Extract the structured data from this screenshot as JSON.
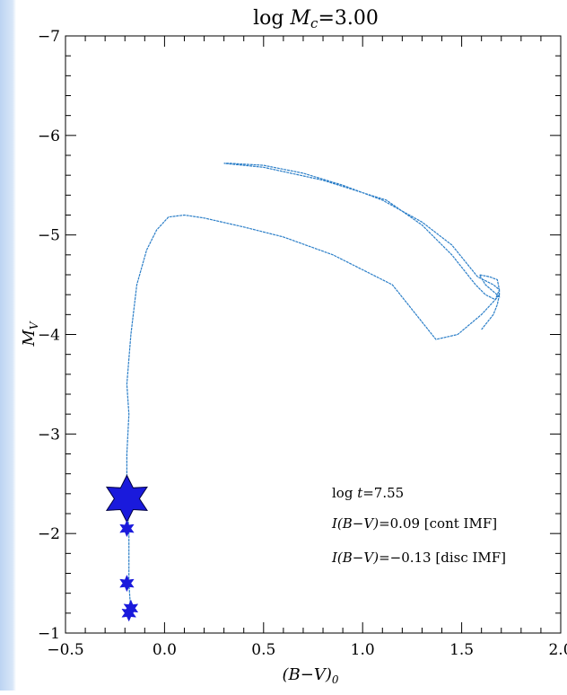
{
  "chart_data": {
    "type": "line",
    "title": "log M_c=3.00",
    "title_prefix": "log ",
    "title_var": "M",
    "title_sub": "c",
    "title_suffix": "=3.00",
    "xlabel": "(B−V)_0",
    "xlabel_main": "(B−V)",
    "xlabel_sub": "0",
    "ylabel": "M_V",
    "ylabel_main": "M",
    "ylabel_sub": "V",
    "xlim": [
      -0.5,
      2.0
    ],
    "ylim": [
      -1,
      -7
    ],
    "y_inverted": true,
    "x_ticks": [
      -0.5,
      0.0,
      0.5,
      1.0,
      1.5,
      2.0
    ],
    "x_tick_labels": [
      "−0.5",
      "0.0",
      "0.5",
      "1.0",
      "1.5",
      "2.0"
    ],
    "y_ticks": [
      -7,
      -6,
      -5,
      -4,
      -3,
      -2,
      -1
    ],
    "y_tick_labels": [
      "−7",
      "−6",
      "−5",
      "−4",
      "−3",
      "−2",
      "−1"
    ],
    "line_color": "#2c7fc8",
    "star_color": "#1a1adc",
    "isochrone": {
      "x": [
        -0.17,
        -0.18,
        -0.18,
        -0.19,
        -0.19,
        -0.18,
        -0.19,
        -0.17,
        -0.14,
        -0.09,
        -0.04,
        0.02,
        0.1,
        0.2,
        0.4,
        0.6,
        0.85,
        1.15,
        1.37,
        1.48,
        1.6,
        1.67,
        1.69,
        1.68,
        1.64,
        1.59,
        1.62,
        1.69,
        1.69,
        1.66,
        1.58,
        1.45,
        1.3,
        1.1,
        0.9,
        0.7,
        0.5,
        0.33,
        0.3,
        0.5,
        0.8,
        1.12,
        1.3,
        1.45,
        1.57,
        1.62,
        1.67,
        1.69,
        1.68,
        1.66,
        1.62,
        1.6
      ],
      "y": [
        -1.2,
        -1.5,
        -2.0,
        -2.4,
        -2.8,
        -3.2,
        -3.5,
        -4.0,
        -4.5,
        -4.85,
        -5.05,
        -5.18,
        -5.2,
        -5.17,
        -5.08,
        -4.98,
        -4.8,
        -4.5,
        -3.95,
        -4.0,
        -4.2,
        -4.35,
        -4.45,
        -4.55,
        -4.58,
        -4.6,
        -4.5,
        -4.38,
        -4.45,
        -4.5,
        -4.58,
        -4.9,
        -5.13,
        -5.35,
        -5.5,
        -5.62,
        -5.7,
        -5.72,
        -5.72,
        -5.68,
        -5.55,
        -5.35,
        -5.1,
        -4.8,
        -4.5,
        -4.4,
        -4.35,
        -4.4,
        -4.3,
        -4.2,
        -4.1,
        -4.05
      ]
    },
    "stars": [
      {
        "x": -0.19,
        "y": -2.35,
        "size": "large"
      },
      {
        "x": -0.19,
        "y": -2.05,
        "size": "small"
      },
      {
        "x": -0.19,
        "y": -1.5,
        "size": "small"
      },
      {
        "x": -0.17,
        "y": -1.25,
        "size": "small"
      },
      {
        "x": -0.18,
        "y": -1.2,
        "size": "small"
      }
    ],
    "annotations": {
      "line1": "log t=7.55",
      "line2": "I(B−V)=0.09 [cont IMF]",
      "line3": "I(B−V)=−0.13 [disc IMF]",
      "line1_prefix": "log ",
      "line1_var": "t",
      "line1_rest": "=7.55",
      "line2_var": "I(B−V)",
      "line2_rest": "=0.09 [cont IMF]",
      "line3_var": "I(B−V)",
      "line3_rest": "=−0.13 [disc IMF]"
    }
  }
}
